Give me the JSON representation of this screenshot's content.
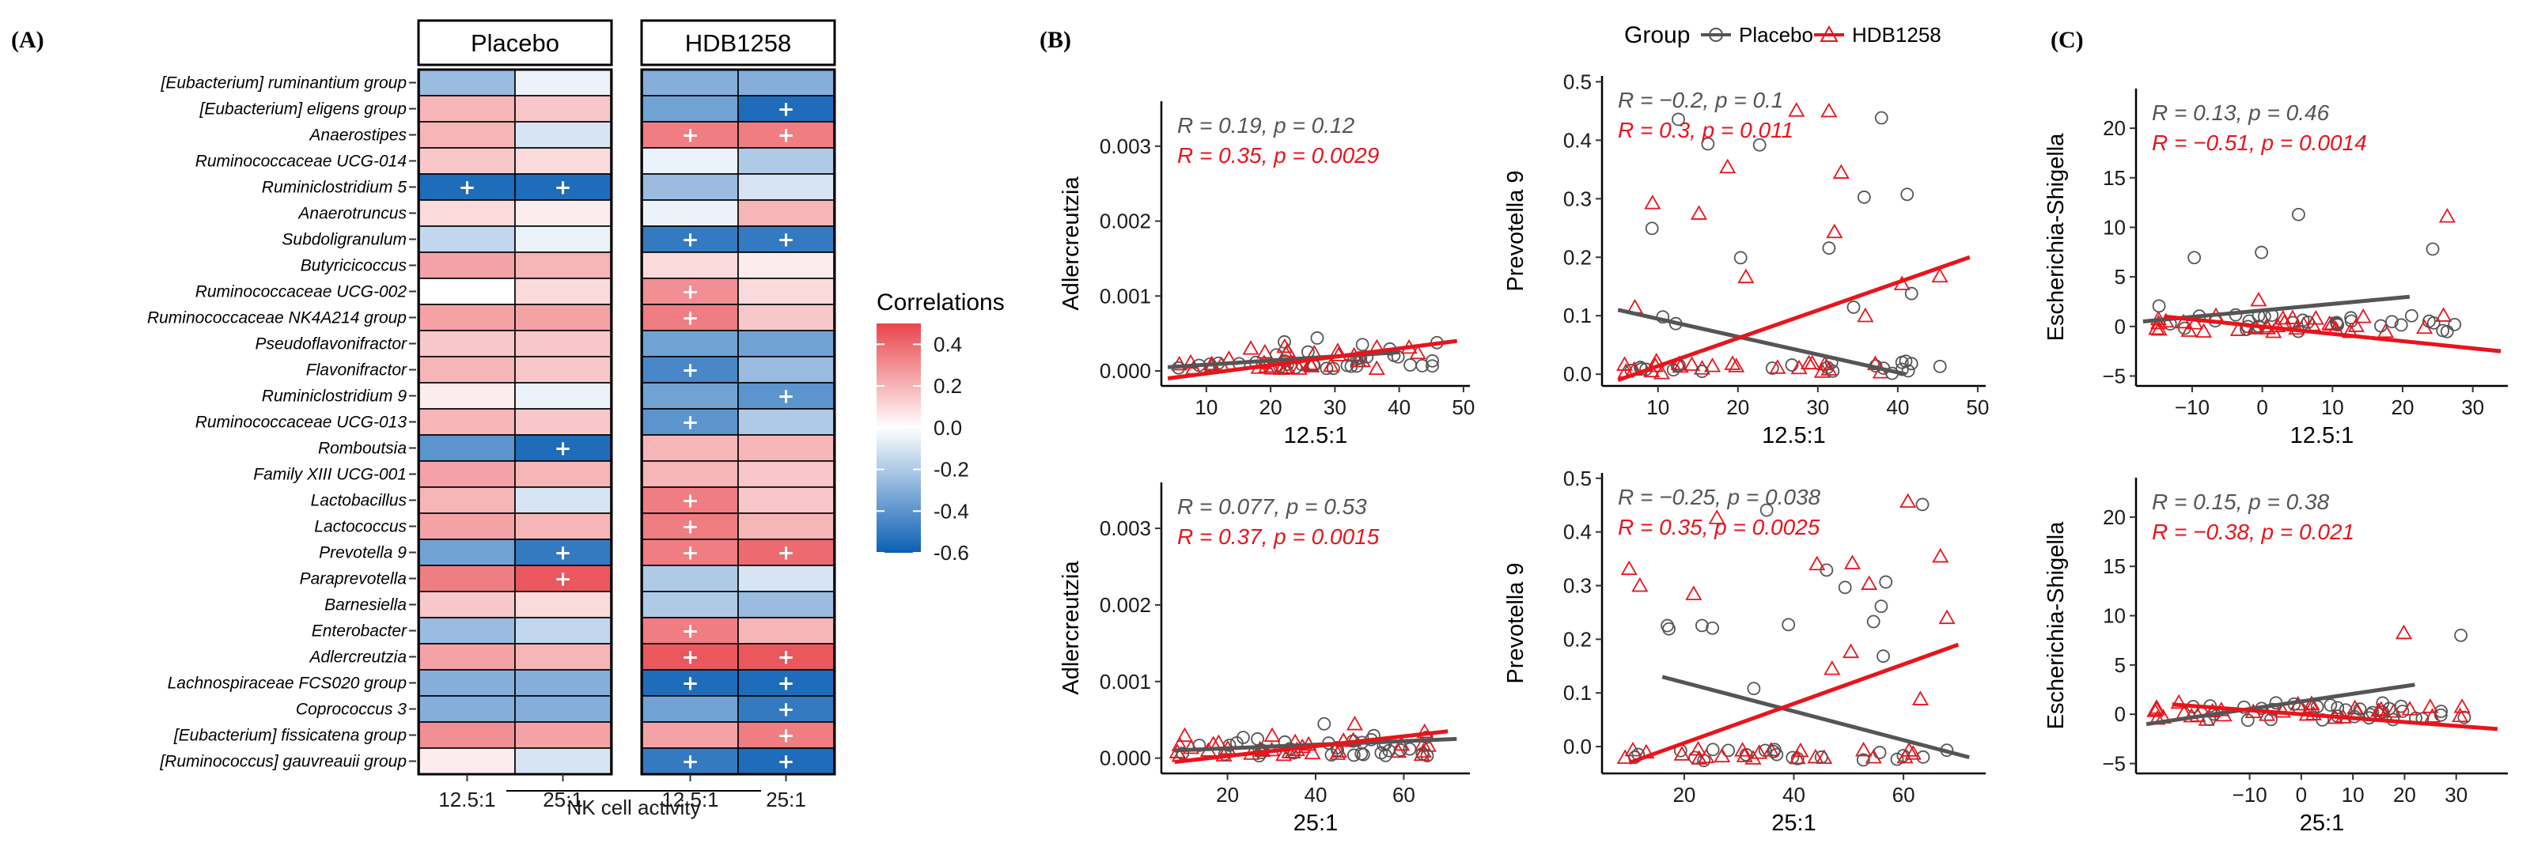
{
  "chart_data": [
    {
      "panel": "(A)",
      "type": "heatmap",
      "facets": [
        "Placebo",
        "HDB1258"
      ],
      "columns": [
        "12.5:1",
        "25:1"
      ],
      "xlabel": "NK cell activity",
      "colorbar": {
        "title": "Correlations",
        "ticks": [
          "0.4",
          "0.2",
          "0.0",
          "-0.2",
          "-0.4",
          "-0.6"
        ],
        "range": [
          -0.6,
          0.5
        ]
      },
      "rows": [
        "[Eubacterium] ruminantium group",
        "[Eubacterium] eligens group",
        "Anaerostipes",
        "Ruminococcaceae UCG-014",
        "Ruminiclostridium 5",
        "Anaerotruncus",
        "Subdoligranulum",
        "Butyricicoccus",
        "Ruminococcaceae UCG-002",
        "Ruminococcaceae NK4A214 group",
        "Pseudoflavonifractor",
        "Flavonifractor",
        "Ruminiclostridium 9",
        "Ruminococcaceae UCG-013",
        "Romboutsia",
        "Family XIII UCG-001",
        "Lactobacillus",
        "Lactococcus",
        "Prevotella 9",
        "Paraprevotella",
        "Barnesiella",
        "Enterobacter",
        "Adlercreutzia",
        "Lachnospiraceae FCS020 group",
        "Coprococcus 3",
        "[Eubacterium] fissicatena group",
        "[Ruminococcus] gauvreauii group"
      ],
      "values": [
        [
          -0.25,
          -0.05,
          -0.3,
          -0.3
        ],
        [
          0.2,
          0.15,
          -0.35,
          -0.55
        ],
        [
          0.2,
          -0.1,
          0.35,
          0.35
        ],
        [
          0.15,
          0.1,
          -0.05,
          -0.2
        ],
        [
          -0.55,
          -0.55,
          -0.25,
          -0.1
        ],
        [
          0.1,
          0.05,
          -0.05,
          0.2
        ],
        [
          -0.15,
          -0.05,
          -0.5,
          -0.5
        ],
        [
          0.25,
          0.2,
          0.1,
          0.05
        ],
        [
          0.0,
          0.1,
          0.3,
          0.1
        ],
        [
          0.25,
          0.25,
          0.35,
          0.15
        ],
        [
          0.15,
          0.15,
          -0.35,
          -0.35
        ],
        [
          0.2,
          0.15,
          -0.45,
          -0.25
        ],
        [
          0.05,
          -0.05,
          -0.35,
          -0.4
        ],
        [
          0.2,
          0.15,
          -0.4,
          -0.2
        ],
        [
          -0.4,
          -0.55,
          0.2,
          0.2
        ],
        [
          0.25,
          0.2,
          0.2,
          0.15
        ],
        [
          0.2,
          -0.1,
          0.35,
          0.15
        ],
        [
          0.25,
          0.2,
          0.35,
          0.2
        ],
        [
          -0.35,
          -0.5,
          0.35,
          0.4
        ],
        [
          0.35,
          0.45,
          -0.2,
          -0.1
        ],
        [
          0.15,
          0.1,
          -0.2,
          -0.25
        ],
        [
          -0.25,
          -0.15,
          0.35,
          0.2
        ],
        [
          0.25,
          0.2,
          0.45,
          0.45
        ],
        [
          -0.3,
          -0.3,
          -0.55,
          -0.55
        ],
        [
          -0.3,
          -0.3,
          -0.35,
          -0.5
        ],
        [
          0.3,
          0.25,
          0.25,
          0.35
        ],
        [
          0.05,
          -0.1,
          -0.5,
          -0.55
        ]
      ],
      "significant": [
        [
          false,
          false,
          false,
          false
        ],
        [
          false,
          false,
          false,
          true
        ],
        [
          false,
          false,
          true,
          true
        ],
        [
          false,
          false,
          false,
          false
        ],
        [
          true,
          true,
          false,
          false
        ],
        [
          false,
          false,
          false,
          false
        ],
        [
          false,
          false,
          true,
          true
        ],
        [
          false,
          false,
          false,
          false
        ],
        [
          false,
          false,
          true,
          false
        ],
        [
          false,
          false,
          true,
          false
        ],
        [
          false,
          false,
          false,
          false
        ],
        [
          false,
          false,
          true,
          false
        ],
        [
          false,
          false,
          false,
          true
        ],
        [
          false,
          false,
          true,
          false
        ],
        [
          false,
          true,
          false,
          false
        ],
        [
          false,
          false,
          false,
          false
        ],
        [
          false,
          false,
          true,
          false
        ],
        [
          false,
          false,
          true,
          false
        ],
        [
          false,
          true,
          true,
          true
        ],
        [
          false,
          true,
          false,
          false
        ],
        [
          false,
          false,
          false,
          false
        ],
        [
          false,
          false,
          true,
          false
        ],
        [
          false,
          false,
          true,
          true
        ],
        [
          false,
          false,
          true,
          true
        ],
        [
          false,
          false,
          false,
          true
        ],
        [
          false,
          false,
          false,
          true
        ],
        [
          false,
          false,
          true,
          true
        ]
      ]
    },
    {
      "panel": "(B)",
      "type": "scatter",
      "legend": {
        "title": "Group",
        "entries": [
          "Placebo",
          "HDB1258"
        ],
        "placement": "top"
      },
      "plots": [
        {
          "xlabel": "12.5:1",
          "ylabel": "Adlercreutzia",
          "xticks": [
            "10",
            "20",
            "30",
            "40",
            "50"
          ],
          "yticks": [
            "0.000",
            "0.001",
            "0.002",
            "0.003"
          ],
          "xlim": [
            3,
            51
          ],
          "ylim": [
            -0.0002,
            0.0036
          ],
          "stats": [
            "R = 0.19, p = 0.12",
            "R = 0.35, p = 0.0029"
          ],
          "lines": {
            "placebo": [
              [
                4,
                5e-05
              ],
              [
                40,
                0.00025
              ]
            ],
            "hdb": [
              [
                4,
                -0.0001
              ],
              [
                49,
                0.0004
              ]
            ]
          }
        },
        {
          "xlabel": "12.5:1",
          "ylabel": "Prevotella 9",
          "xticks": [
            "10",
            "20",
            "30",
            "40",
            "50"
          ],
          "yticks": [
            "0.0",
            "0.1",
            "0.2",
            "0.3",
            "0.4",
            "0.5"
          ],
          "xlim": [
            3,
            51
          ],
          "ylim": [
            -0.02,
            0.51
          ],
          "stats": [
            "R = −0.2, p = 0.1",
            "R = 0.3, p = 0.011"
          ],
          "lines": {
            "placebo": [
              [
                5,
                0.11
              ],
              [
                41,
                0.0
              ]
            ],
            "hdb": [
              [
                5,
                -0.01
              ],
              [
                49,
                0.2
              ]
            ]
          }
        },
        {
          "xlabel": "25:1",
          "ylabel": "Adlercreutzia",
          "xticks": [
            "20",
            "40",
            "60"
          ],
          "yticks": [
            "0.000",
            "0.001",
            "0.002",
            "0.003"
          ],
          "xlim": [
            5,
            75
          ],
          "ylim": [
            -0.0002,
            0.0036
          ],
          "stats": [
            "R = 0.077, p = 0.53",
            "R = 0.37, p = 0.0015"
          ],
          "lines": {
            "placebo": [
              [
                8,
                0.0001
              ],
              [
                72,
                0.00025
              ]
            ],
            "hdb": [
              [
                8,
                -5e-05
              ],
              [
                70,
                0.00035
              ]
            ]
          }
        },
        {
          "xlabel": "25:1",
          "ylabel": "Prevotella 9",
          "xticks": [
            "20",
            "40",
            "60"
          ],
          "yticks": [
            "0.0",
            "0.1",
            "0.2",
            "0.3",
            "0.4",
            "0.5"
          ],
          "xlim": [
            5,
            75
          ],
          "ylim": [
            -0.05,
            0.51
          ],
          "stats": [
            "R = −0.25, p = 0.038",
            "R = 0.35, p = 0.0025"
          ],
          "lines": {
            "placebo": [
              [
                16,
                0.13
              ],
              [
                72,
                -0.02
              ]
            ],
            "hdb": [
              [
                10,
                -0.03
              ],
              [
                70,
                0.19
              ]
            ]
          }
        }
      ]
    },
    {
      "panel": "(C)",
      "type": "scatter",
      "plots": [
        {
          "xlabel": "12.5:1",
          "ylabel": "Escherichia-Shigella",
          "xticks": [
            "−10",
            "0",
            "10",
            "20",
            "30"
          ],
          "yticks": [
            "−5",
            "0",
            "5",
            "10",
            "15",
            "20"
          ],
          "xlim": [
            -18,
            35
          ],
          "ylim": [
            -6,
            24
          ],
          "stats": [
            "R = 0.13, p = 0.46",
            "R = −0.51, p = 0.0014"
          ],
          "lines": {
            "placebo": [
              [
                -17,
                0.5
              ],
              [
                21,
                3.0
              ]
            ],
            "hdb": [
              [
                -14,
                1.0
              ],
              [
                34,
                -2.5
              ]
            ]
          }
        },
        {
          "xlabel": "25:1",
          "ylabel": "Escherichia-Shigella",
          "xticks": [
            "−10",
            "0",
            "10",
            "20",
            "30"
          ],
          "yticks": [
            "−5",
            "0",
            "5",
            "10",
            "15",
            "20"
          ],
          "xlim": [
            -32,
            40
          ],
          "ylim": [
            -6,
            24
          ],
          "stats": [
            "R = 0.15, p = 0.38",
            "R = −0.38, p = 0.021"
          ],
          "lines": {
            "placebo": [
              [
                -30,
                -1.0
              ],
              [
                22,
                3.0
              ]
            ],
            "hdb": [
              [
                -25,
                1.0
              ],
              [
                38,
                -1.5
              ]
            ]
          }
        }
      ]
    }
  ],
  "labels": {
    "panel_a": "(A)",
    "panel_b": "(B)",
    "panel_c": "(C)"
  },
  "colors": {
    "placebo": "#555555",
    "hdb": "#e8141c",
    "neg": "#0b5fb5",
    "pos": "#e8454c"
  }
}
